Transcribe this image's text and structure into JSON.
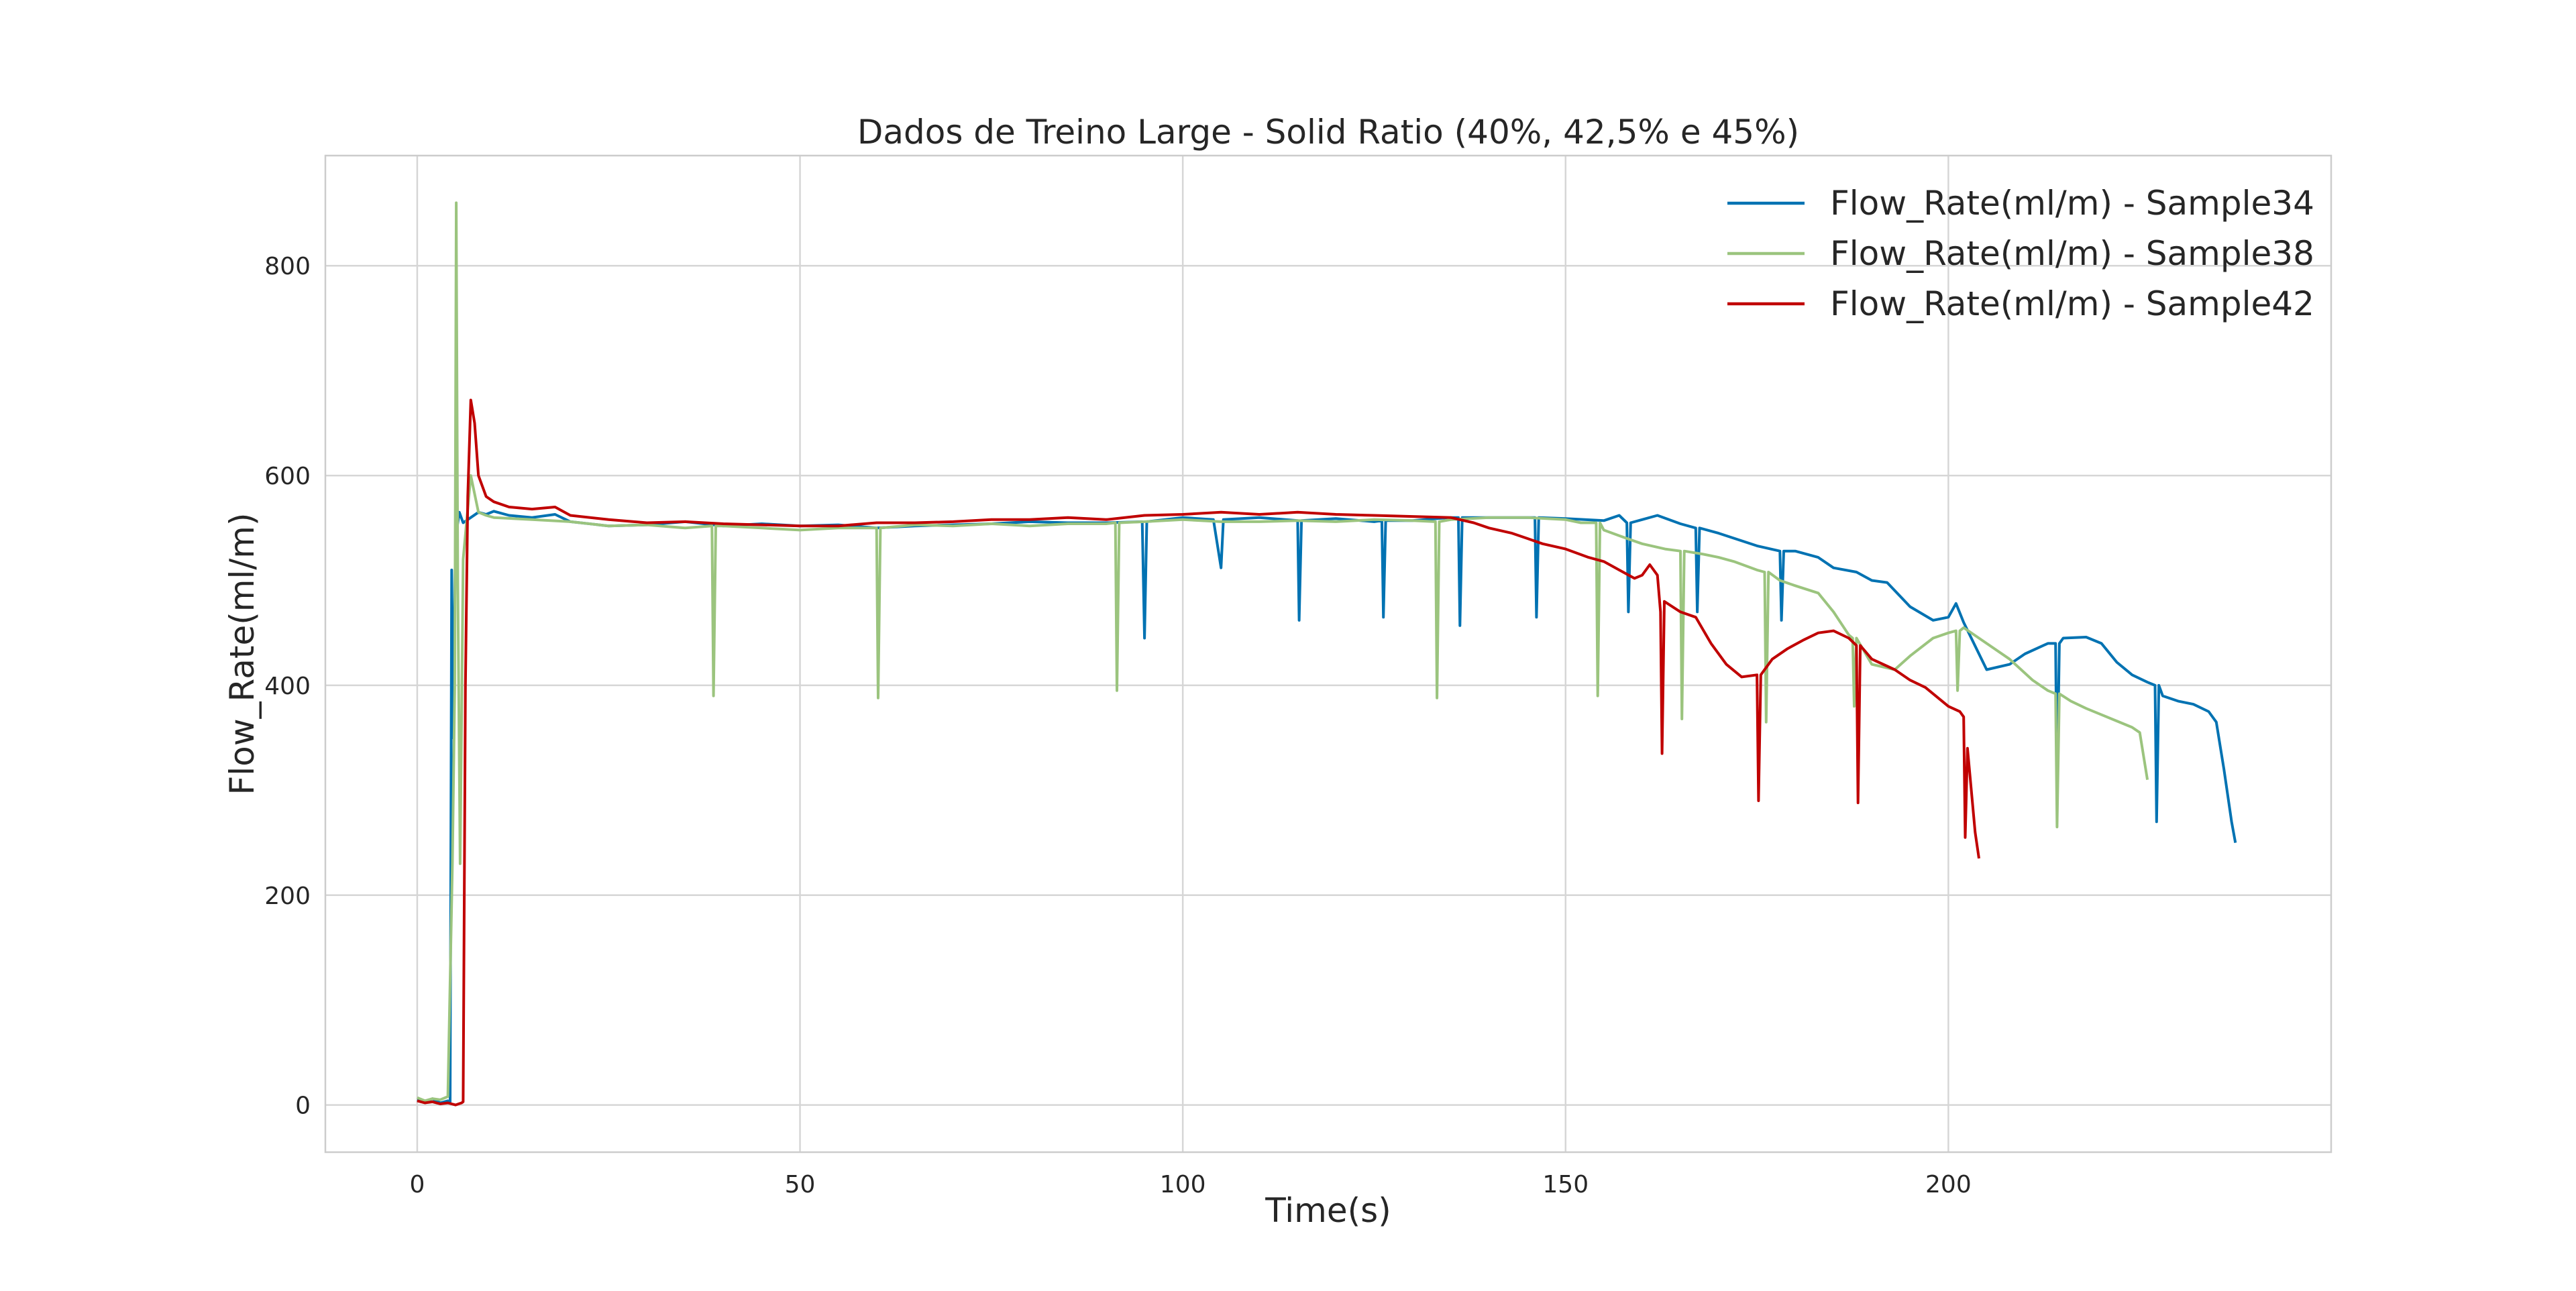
{
  "chart_data": {
    "type": "line",
    "title": "Dados de Treino Large - Solid Ratio (40%, 42,5% e 45%)",
    "xlabel": "Time(s)",
    "ylabel": "Flow_Rate(ml/m)",
    "xlim": [
      -12,
      250
    ],
    "ylim": [
      -45,
      905
    ],
    "xticks": [
      0,
      50,
      100,
      150,
      200
    ],
    "yticks": [
      0,
      200,
      400,
      600,
      800
    ],
    "grid": true,
    "legend": "top-right",
    "series": [
      {
        "name": "Flow_Rate(ml/m) - Sample34",
        "color": "#0072B2",
        "points": [
          [
            0,
            5
          ],
          [
            1,
            3
          ],
          [
            2,
            6
          ],
          [
            3,
            2
          ],
          [
            4,
            4
          ],
          [
            4.3,
            3
          ],
          [
            4.5,
            510
          ],
          [
            4.7,
            350
          ],
          [
            5,
            540
          ],
          [
            5.5,
            565
          ],
          [
            6,
            555
          ],
          [
            7,
            560
          ],
          [
            8,
            565
          ],
          [
            9,
            563
          ],
          [
            10,
            566
          ],
          [
            12,
            562
          ],
          [
            15,
            560
          ],
          [
            18,
            563
          ],
          [
            20,
            556
          ],
          [
            25,
            552
          ],
          [
            30,
            553
          ],
          [
            35,
            556
          ],
          [
            40,
            552
          ],
          [
            45,
            554
          ],
          [
            50,
            552
          ],
          [
            55,
            553
          ],
          [
            60,
            550
          ],
          [
            65,
            552
          ],
          [
            70,
            553
          ],
          [
            75,
            554
          ],
          [
            80,
            556
          ],
          [
            85,
            555
          ],
          [
            90,
            555
          ],
          [
            94.7,
            556
          ],
          [
            95,
            445
          ],
          [
            95.3,
            556
          ],
          [
            100,
            560
          ],
          [
            104,
            558
          ],
          [
            105,
            512
          ],
          [
            105.3,
            558
          ],
          [
            110,
            560
          ],
          [
            115,
            557
          ],
          [
            115.2,
            462
          ],
          [
            115.5,
            557
          ],
          [
            120,
            559
          ],
          [
            125,
            556
          ],
          [
            126,
            557
          ],
          [
            126.2,
            465
          ],
          [
            126.5,
            557
          ],
          [
            130,
            557
          ],
          [
            135,
            560
          ],
          [
            136,
            560
          ],
          [
            136.2,
            457
          ],
          [
            136.5,
            560
          ],
          [
            140,
            560
          ],
          [
            145,
            560
          ],
          [
            146,
            560
          ],
          [
            146.2,
            465
          ],
          [
            146.5,
            560
          ],
          [
            150,
            559
          ],
          [
            155,
            557
          ],
          [
            157,
            562
          ],
          [
            158,
            555
          ],
          [
            158.2,
            470
          ],
          [
            158.5,
            555
          ],
          [
            160,
            558
          ],
          [
            162,
            562
          ],
          [
            165,
            554
          ],
          [
            167,
            550
          ],
          [
            167.2,
            470
          ],
          [
            167.5,
            550
          ],
          [
            170,
            545
          ],
          [
            175,
            533
          ],
          [
            178,
            528
          ],
          [
            178.2,
            462
          ],
          [
            178.5,
            528
          ],
          [
            180,
            528
          ],
          [
            183,
            522
          ],
          [
            185,
            512
          ],
          [
            188,
            508
          ],
          [
            190,
            500
          ],
          [
            192,
            498
          ],
          [
            195,
            475
          ],
          [
            198,
            462
          ],
          [
            200,
            465
          ],
          [
            201,
            478
          ],
          [
            202,
            460
          ],
          [
            205,
            415
          ],
          [
            208,
            420
          ],
          [
            210,
            430
          ],
          [
            213,
            440
          ],
          [
            214,
            440
          ],
          [
            214.2,
            300
          ],
          [
            214.5,
            440
          ],
          [
            215,
            445
          ],
          [
            218,
            446
          ],
          [
            220,
            440
          ],
          [
            222,
            422
          ],
          [
            224,
            410
          ],
          [
            226,
            403
          ],
          [
            227,
            400
          ],
          [
            227.2,
            270
          ],
          [
            227.5,
            400
          ],
          [
            228,
            390
          ],
          [
            230,
            385
          ],
          [
            232,
            382
          ],
          [
            234,
            375
          ],
          [
            235,
            365
          ],
          [
            236,
            320
          ],
          [
            237,
            270
          ],
          [
            237.5,
            250
          ]
        ]
      },
      {
        "name": "Flow_Rate(ml/m) - Sample38",
        "color": "#9BC47E",
        "points": [
          [
            0,
            7
          ],
          [
            1,
            4
          ],
          [
            2,
            6
          ],
          [
            3,
            5
          ],
          [
            4,
            8
          ],
          [
            4.6,
            230
          ],
          [
            4.9,
            400
          ],
          [
            5.1,
            860
          ],
          [
            5.3,
            500
          ],
          [
            5.6,
            230
          ],
          [
            6,
            520
          ],
          [
            7,
            600
          ],
          [
            8,
            565
          ],
          [
            9,
            562
          ],
          [
            10,
            560
          ],
          [
            15,
            558
          ],
          [
            20,
            556
          ],
          [
            25,
            552
          ],
          [
            30,
            553
          ],
          [
            35,
            550
          ],
          [
            38.5,
            552
          ],
          [
            38.7,
            390
          ],
          [
            39,
            552
          ],
          [
            40,
            552
          ],
          [
            45,
            550
          ],
          [
            50,
            548
          ],
          [
            55,
            550
          ],
          [
            60,
            550
          ],
          [
            60.2,
            388
          ],
          [
            60.5,
            550
          ],
          [
            65,
            553
          ],
          [
            70,
            552
          ],
          [
            75,
            554
          ],
          [
            80,
            552
          ],
          [
            85,
            554
          ],
          [
            90,
            554
          ],
          [
            91.2,
            555
          ],
          [
            91.4,
            395
          ],
          [
            91.7,
            555
          ],
          [
            95,
            556
          ],
          [
            100,
            558
          ],
          [
            105,
            556
          ],
          [
            110,
            556
          ],
          [
            115,
            557
          ],
          [
            120,
            556
          ],
          [
            125,
            558
          ],
          [
            130,
            557
          ],
          [
            133,
            556
          ],
          [
            133.2,
            388
          ],
          [
            133.5,
            556
          ],
          [
            135,
            558
          ],
          [
            140,
            560
          ],
          [
            145,
            560
          ],
          [
            150,
            558
          ],
          [
            152,
            555
          ],
          [
            154,
            555
          ],
          [
            154.2,
            390
          ],
          [
            154.5,
            555
          ],
          [
            155,
            548
          ],
          [
            158,
            540
          ],
          [
            160,
            535
          ],
          [
            163,
            530
          ],
          [
            165,
            528
          ],
          [
            165.2,
            368
          ],
          [
            165.5,
            528
          ],
          [
            168,
            525
          ],
          [
            170,
            522
          ],
          [
            172,
            518
          ],
          [
            175,
            510
          ],
          [
            176,
            508
          ],
          [
            176.2,
            365
          ],
          [
            176.5,
            508
          ],
          [
            178,
            500
          ],
          [
            180,
            495
          ],
          [
            183,
            488
          ],
          [
            185,
            470
          ],
          [
            187,
            448
          ],
          [
            187.5,
            445
          ],
          [
            187.7,
            380
          ],
          [
            188,
            445
          ],
          [
            190,
            420
          ],
          [
            193,
            415
          ],
          [
            195,
            428
          ],
          [
            198,
            445
          ],
          [
            200,
            450
          ],
          [
            201,
            452
          ],
          [
            201.2,
            395
          ],
          [
            201.5,
            452
          ],
          [
            202,
            455
          ],
          [
            205,
            440
          ],
          [
            208,
            425
          ],
          [
            211,
            405
          ],
          [
            213,
            395
          ],
          [
            214,
            392
          ],
          [
            214.2,
            265
          ],
          [
            214.5,
            392
          ],
          [
            216,
            385
          ],
          [
            218,
            378
          ],
          [
            220,
            372
          ],
          [
            222,
            366
          ],
          [
            224,
            360
          ],
          [
            225,
            355
          ],
          [
            226,
            310
          ]
        ]
      },
      {
        "name": "Flow_Rate(ml/m) - Sample42",
        "color": "#C00000",
        "points": [
          [
            0,
            4
          ],
          [
            1,
            2
          ],
          [
            2,
            3
          ],
          [
            3,
            1
          ],
          [
            4,
            2
          ],
          [
            5,
            0
          ],
          [
            5.8,
            2
          ],
          [
            6,
            3
          ],
          [
            6.3,
            400
          ],
          [
            6.6,
            580
          ],
          [
            7,
            672
          ],
          [
            7.5,
            650
          ],
          [
            8,
            600
          ],
          [
            9,
            580
          ],
          [
            10,
            575
          ],
          [
            12,
            570
          ],
          [
            15,
            568
          ],
          [
            18,
            570
          ],
          [
            20,
            562
          ],
          [
            25,
            558
          ],
          [
            30,
            555
          ],
          [
            35,
            556
          ],
          [
            40,
            554
          ],
          [
            45,
            553
          ],
          [
            50,
            552
          ],
          [
            55,
            552
          ],
          [
            60,
            555
          ],
          [
            65,
            555
          ],
          [
            70,
            556
          ],
          [
            75,
            558
          ],
          [
            80,
            558
          ],
          [
            85,
            560
          ],
          [
            90,
            558
          ],
          [
            95,
            562
          ],
          [
            100,
            563
          ],
          [
            105,
            565
          ],
          [
            110,
            563
          ],
          [
            115,
            565
          ],
          [
            120,
            563
          ],
          [
            125,
            562
          ],
          [
            130,
            561
          ],
          [
            135,
            560
          ],
          [
            138,
            555
          ],
          [
            140,
            550
          ],
          [
            143,
            545
          ],
          [
            145,
            540
          ],
          [
            147,
            535
          ],
          [
            150,
            530
          ],
          [
            153,
            522
          ],
          [
            155,
            518
          ],
          [
            157,
            510
          ],
          [
            159,
            502
          ],
          [
            160,
            505
          ],
          [
            161,
            515
          ],
          [
            162,
            505
          ],
          [
            162.4,
            470
          ],
          [
            162.6,
            335
          ],
          [
            162.9,
            480
          ],
          [
            165,
            470
          ],
          [
            167,
            465
          ],
          [
            169,
            440
          ],
          [
            171,
            420
          ],
          [
            173,
            408
          ],
          [
            175,
            410
          ],
          [
            175.2,
            290
          ],
          [
            175.5,
            410
          ],
          [
            177,
            425
          ],
          [
            179,
            435
          ],
          [
            181,
            443
          ],
          [
            183,
            450
          ],
          [
            185,
            452
          ],
          [
            187,
            445
          ],
          [
            188,
            438
          ],
          [
            188.2,
            288
          ],
          [
            188.5,
            438
          ],
          [
            190,
            425
          ],
          [
            193,
            415
          ],
          [
            195,
            405
          ],
          [
            197,
            398
          ],
          [
            198,
            392
          ],
          [
            200,
            380
          ],
          [
            201.5,
            375
          ],
          [
            202,
            370
          ],
          [
            202.2,
            255
          ],
          [
            202.5,
            340
          ],
          [
            203,
            300
          ],
          [
            203.5,
            260
          ],
          [
            204,
            235
          ]
        ]
      }
    ]
  }
}
